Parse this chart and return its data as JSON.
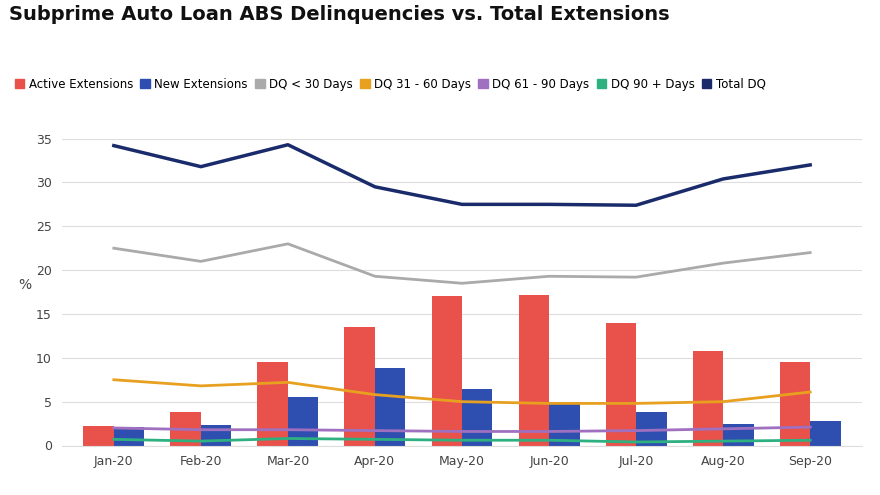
{
  "title": "Subprime Auto Loan ABS Delinquencies vs. Total Extensions",
  "categories": [
    "Jan-20",
    "Feb-20",
    "Mar-20",
    "Apr-20",
    "May-20",
    "Jun-20",
    "Jul-20",
    "Aug-20",
    "Sep-20"
  ],
  "active_extensions": [
    2.2,
    3.8,
    9.5,
    13.5,
    17.0,
    17.2,
    14.0,
    10.8,
    9.5
  ],
  "new_extensions": [
    2.1,
    2.3,
    5.5,
    8.8,
    6.5,
    5.0,
    3.8,
    2.5,
    2.8
  ],
  "dq_lt30": [
    22.5,
    21.0,
    23.0,
    19.3,
    18.5,
    19.3,
    19.2,
    20.8,
    22.0
  ],
  "dq_31_60": [
    7.5,
    6.8,
    7.2,
    5.8,
    5.0,
    4.8,
    4.8,
    5.0,
    6.1
  ],
  "dq_61_90": [
    2.0,
    1.8,
    1.8,
    1.7,
    1.6,
    1.6,
    1.7,
    1.9,
    2.1
  ],
  "dq_90plus": [
    0.7,
    0.5,
    0.8,
    0.7,
    0.6,
    0.6,
    0.4,
    0.5,
    0.6
  ],
  "total_dq": [
    34.2,
    31.8,
    34.3,
    29.5,
    27.5,
    27.5,
    27.4,
    30.4,
    32.0
  ],
  "active_ext_color": "#E8524A",
  "new_ext_color": "#2E4FAF",
  "dq_lt30_color": "#AAAAAA",
  "dq_31_60_color": "#E8A020",
  "dq_61_90_color": "#A070C0",
  "dq_90plus_color": "#2EB080",
  "total_dq_color": "#1A2B6B",
  "ylim": [
    0,
    35
  ],
  "yticks": [
    0,
    5,
    10,
    15,
    20,
    25,
    30,
    35
  ],
  "ylabel": "%",
  "background_color": "#FFFFFF",
  "grid_color": "#DDDDDD",
  "title_fontsize": 14,
  "legend_fontsize": 8.5,
  "bar_width": 0.35
}
